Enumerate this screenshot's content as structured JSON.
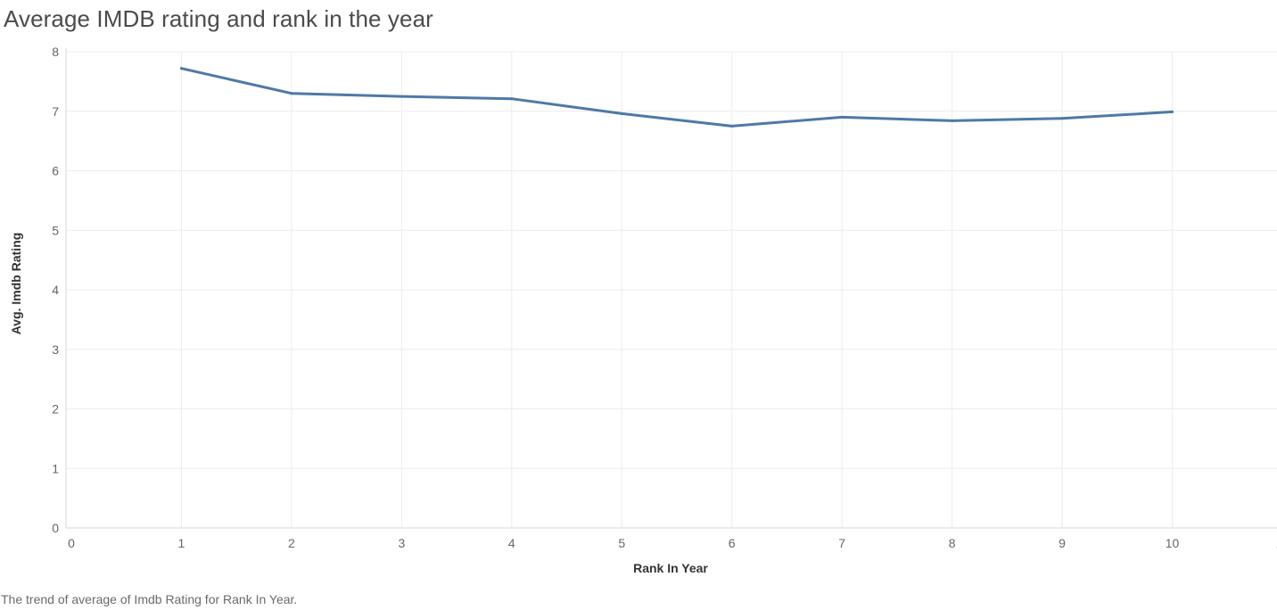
{
  "title": "Average IMDB rating and rank in the year",
  "caption": "The trend of average of Imdb Rating for Rank In Year.",
  "chart_data": {
    "type": "line",
    "title": "Average IMDB rating and rank in the year",
    "xlabel": "Rank In Year",
    "ylabel": "Avg. Imdb Rating",
    "xlim": [
      0,
      11
    ],
    "ylim": [
      0,
      8
    ],
    "xticks": [
      0,
      1,
      2,
      3,
      4,
      5,
      6,
      7,
      8,
      9,
      10,
      11
    ],
    "yticks": [
      0,
      1,
      2,
      3,
      4,
      5,
      6,
      7,
      8
    ],
    "grid": true,
    "series": [
      {
        "x": [
          1,
          2,
          3,
          4,
          5,
          6,
          7,
          8,
          9,
          10
        ],
        "values": [
          7.72,
          7.3,
          7.25,
          7.21,
          6.96,
          6.75,
          6.9,
          6.84,
          6.88,
          6.99
        ]
      }
    ],
    "colors": {
      "line": "#4e79a7",
      "grid": "#ececec",
      "axis": "#d6d6d6"
    }
  }
}
